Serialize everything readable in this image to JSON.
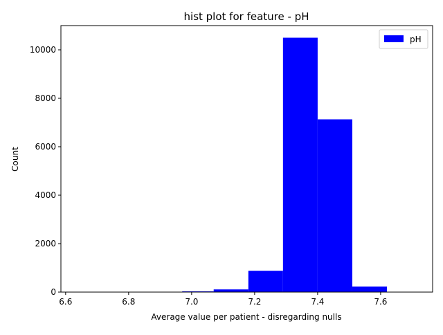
{
  "chart_data": {
    "type": "bar",
    "title": "hist plot for feature -  pH",
    "xlabel": "Average value per patient - disregarding nulls",
    "ylabel": "Count",
    "xlim": [
      6.585,
      7.765
    ],
    "ylim": [
      0,
      11000
    ],
    "xticks": [
      6.6,
      6.8,
      7.0,
      7.2,
      7.4,
      7.6
    ],
    "xtick_labels": [
      "6.6",
      "6.8",
      "7.0",
      "7.2",
      "7.4",
      "7.6"
    ],
    "yticks": [
      0,
      2000,
      4000,
      6000,
      8000,
      10000
    ],
    "ytick_labels": [
      "0",
      "2000",
      "4000",
      "6000",
      "8000",
      "10000"
    ],
    "grid": false,
    "legend": {
      "position": "top-right",
      "entries": [
        "pH"
      ]
    },
    "series": [
      {
        "name": "pH",
        "color": "#0000ff",
        "bins": [
          {
            "x0": 6.64,
            "x1": 6.75,
            "value": 1
          },
          {
            "x0": 6.75,
            "x1": 6.86,
            "value": 2
          },
          {
            "x0": 6.86,
            "x1": 6.97,
            "value": 5
          },
          {
            "x0": 6.97,
            "x1": 7.07,
            "value": 30
          },
          {
            "x0": 7.07,
            "x1": 7.18,
            "value": 110
          },
          {
            "x0": 7.18,
            "x1": 7.29,
            "value": 880
          },
          {
            "x0": 7.29,
            "x1": 7.4,
            "value": 10500
          },
          {
            "x0": 7.4,
            "x1": 7.51,
            "value": 7130
          },
          {
            "x0": 7.51,
            "x1": 7.62,
            "value": 230
          },
          {
            "x0": 7.62,
            "x1": 7.73,
            "value": 3
          }
        ]
      }
    ]
  }
}
